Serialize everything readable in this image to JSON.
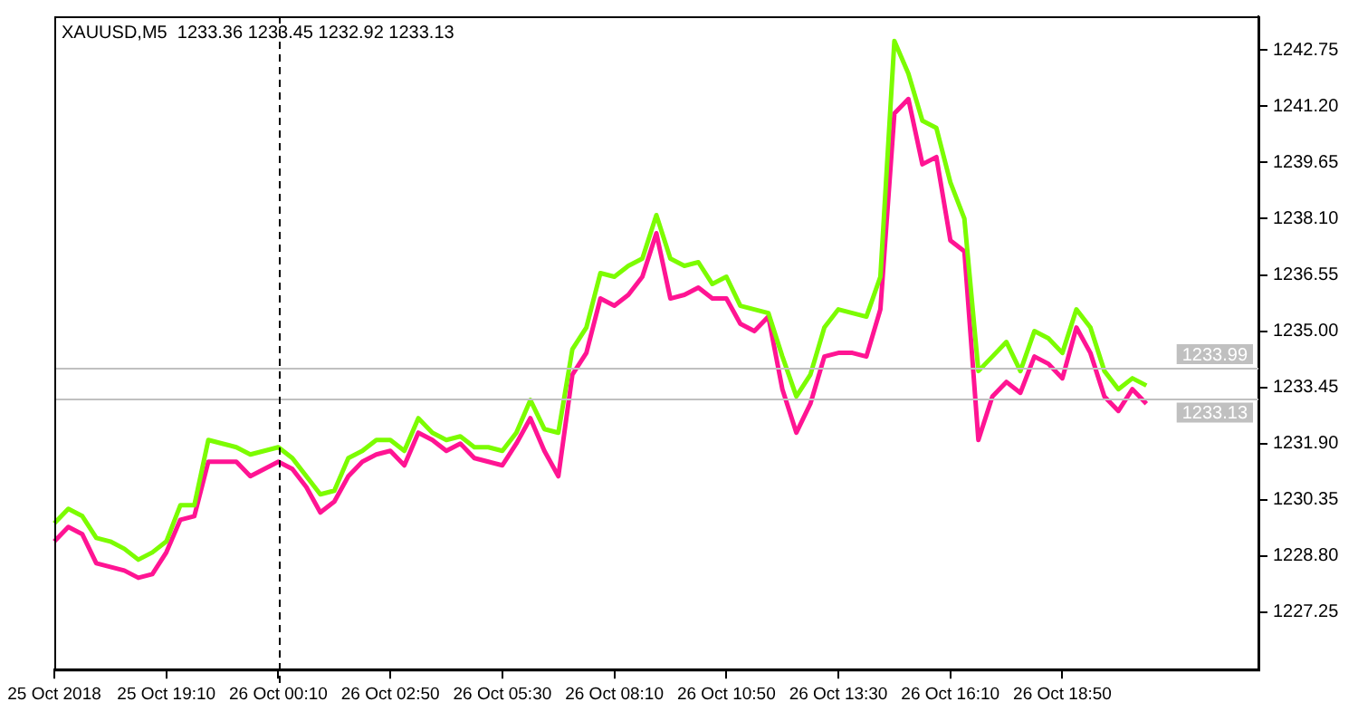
{
  "chart_data": {
    "type": "line",
    "title": "XAUUSD,M5  1233.36 1233.45 1232.92 1233.13",
    "categories": [
      "25 Oct 2018",
      null,
      null,
      null,
      null,
      null,
      null,
      null,
      "25 Oct 19:10",
      null,
      null,
      null,
      null,
      null,
      null,
      null,
      "26 Oct 00:10",
      null,
      null,
      null,
      null,
      null,
      null,
      null,
      "26 Oct 02:50",
      null,
      null,
      null,
      null,
      null,
      null,
      null,
      "26 Oct 05:30",
      null,
      null,
      null,
      null,
      null,
      null,
      null,
      "26 Oct 08:10",
      null,
      null,
      null,
      null,
      null,
      null,
      null,
      "26 Oct 10:50",
      null,
      null,
      null,
      null,
      null,
      null,
      null,
      "26 Oct 13:30",
      null,
      null,
      null,
      null,
      null,
      null,
      null,
      "26 Oct 16:10",
      null,
      null,
      null,
      null,
      null,
      null,
      null,
      "26 Oct 18:50",
      null,
      null,
      null,
      null,
      null,
      null,
      null,
      null,
      null,
      null,
      null,
      null,
      null,
      null
    ],
    "series": [
      {
        "color": "#7cfc00",
        "values": [
          1229.7,
          1230.1,
          1229.9,
          1229.3,
          1229.2,
          1229.0,
          1228.7,
          1228.9,
          1229.2,
          1230.2,
          1230.2,
          1232.0,
          1231.9,
          1231.8,
          1231.6,
          1231.7,
          1231.8,
          1231.5,
          1231.0,
          1230.5,
          1230.6,
          1231.5,
          1231.7,
          1232.0,
          1232.0,
          1231.7,
          1232.6,
          1232.2,
          1232.0,
          1232.1,
          1231.8,
          1231.8,
          1231.7,
          1232.2,
          1233.1,
          1232.3,
          1232.2,
          1234.5,
          1235.1,
          1236.6,
          1236.5,
          1236.8,
          1237.0,
          1238.2,
          1237.0,
          1236.8,
          1236.9,
          1236.3,
          1236.5,
          1235.7,
          1235.6,
          1235.5,
          1234.3,
          1233.2,
          1233.8,
          1235.1,
          1235.6,
          1235.5,
          1235.4,
          1236.5,
          1243.0,
          1242.1,
          1240.8,
          1240.6,
          1239.1,
          1238.1,
          1233.9,
          1234.3,
          1234.7,
          1233.9,
          1235.0,
          1234.8,
          1234.4,
          1235.6,
          1235.1,
          1233.9,
          1233.4,
          1233.7,
          1233.5,
          null,
          null,
          null,
          null,
          null,
          null,
          null,
          null
        ]
      },
      {
        "color": "#ff1493",
        "values": [
          1229.2,
          1229.6,
          1229.4,
          1228.6,
          1228.5,
          1228.4,
          1228.2,
          1228.3,
          1228.9,
          1229.8,
          1229.9,
          1231.4,
          1231.4,
          1231.4,
          1231.0,
          1231.2,
          1231.4,
          1231.2,
          1230.7,
          1230.0,
          1230.3,
          1231.0,
          1231.4,
          1231.6,
          1231.7,
          1231.3,
          1232.2,
          1232.0,
          1231.7,
          1231.9,
          1231.5,
          1231.4,
          1231.3,
          1231.9,
          1232.6,
          1231.7,
          1231.0,
          1233.8,
          1234.4,
          1235.9,
          1235.7,
          1236.0,
          1236.5,
          1237.7,
          1235.9,
          1236.0,
          1236.2,
          1235.9,
          1235.9,
          1235.2,
          1235.0,
          1235.4,
          1233.4,
          1232.2,
          1233.0,
          1234.3,
          1234.4,
          1234.4,
          1234.3,
          1235.6,
          1241.0,
          1241.4,
          1239.6,
          1239.8,
          1237.5,
          1237.2,
          1232.0,
          1233.2,
          1233.6,
          1233.3,
          1234.3,
          1234.1,
          1233.7,
          1235.1,
          1234.4,
          1233.2,
          1232.8,
          1233.4,
          1233.0,
          null,
          null,
          null,
          null,
          null,
          null,
          null,
          null
        ]
      }
    ],
    "ylim": [
      1225.67,
      1243.68
    ],
    "yticks": [
      1227.25,
      {
        "value": 1228.8,
        "label": "1228.80"
      },
      {
        "value": 1230.35,
        "label": "1230.35"
      },
      {
        "value": 1231.9,
        "label": "1231.90"
      },
      1233.45,
      {
        "value": 1235.0,
        "label": "1235.00"
      },
      1236.55,
      {
        "value": 1238.1,
        "label": "1238.10"
      },
      1239.65,
      {
        "value": 1241.2,
        "label": "1241.20"
      },
      1242.75
    ],
    "ref_lines": [
      {
        "axis": "y",
        "value": 1233.99,
        "label": "1233.99",
        "color": "#c0c0c0"
      },
      {
        "axis": "y",
        "value": 1233.13,
        "label": "1233.13",
        "color": "#c0c0c0"
      },
      {
        "axis": "x",
        "value": "26 Oct 00:10",
        "color": "#000000",
        "line_style": "dashed"
      }
    ],
    "grid": false,
    "legend": false,
    "marker": "none",
    "line_style": "solid"
  }
}
